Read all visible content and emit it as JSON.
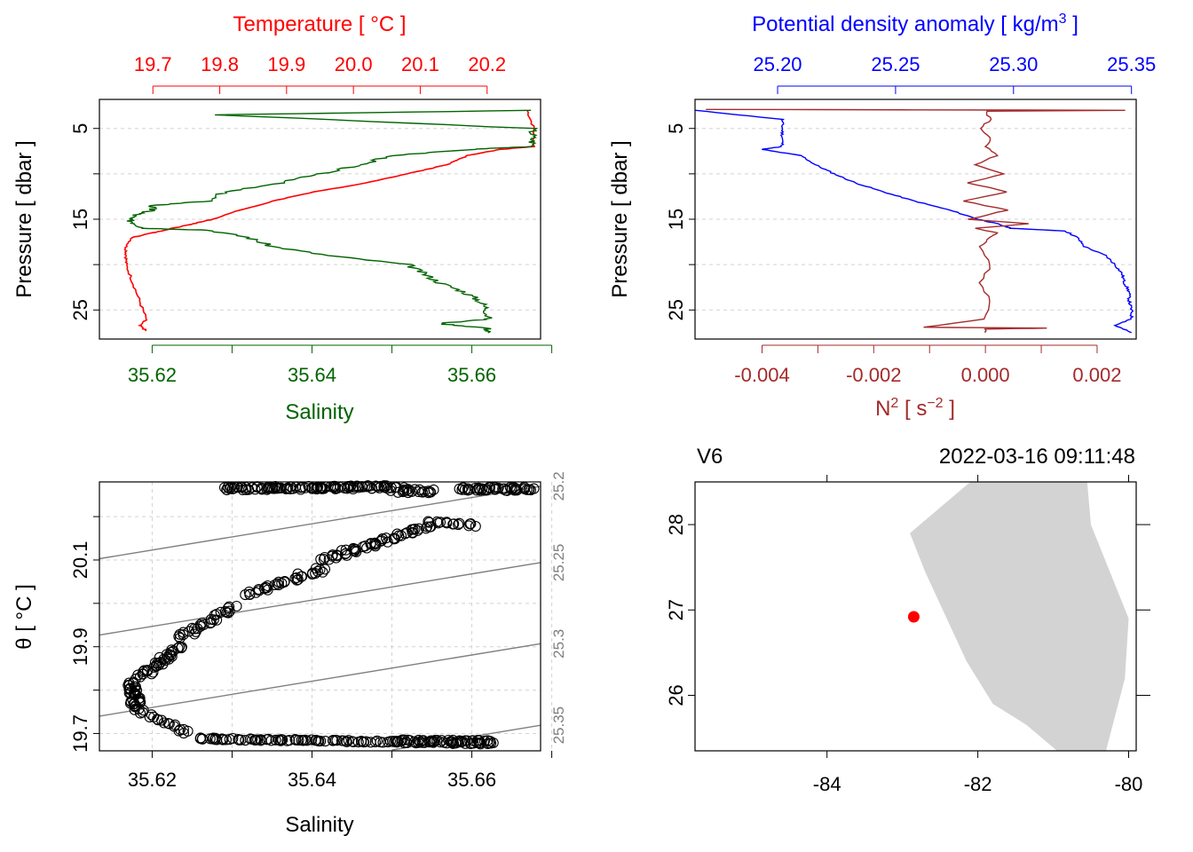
{
  "colors": {
    "temperature": "#ff0000",
    "salinity": "#006400",
    "density": "#0000ff",
    "n2": "#a52a2a",
    "isopycnal": "#7f7f7f",
    "land": "#d3d3d3",
    "station": "#ff0000",
    "grid": "#d3d3d3",
    "frame": "#000000"
  },
  "chart_data": [
    {
      "id": "ts_profile",
      "type": "line",
      "title": "",
      "top_axis": {
        "label": "Temperature [ °C ]",
        "range": [
          19.62,
          20.28
        ],
        "ticks": [
          "19.7",
          "19.8",
          "19.9",
          "20.0",
          "20.1",
          "20.2"
        ]
      },
      "bottom_axis": {
        "label": "Salinity",
        "range": [
          35.6134,
          35.6686
        ],
        "ticks": [
          "35.62",
          "35.64",
          "35.66"
        ]
      },
      "y_axis": {
        "label": "Pressure [ dbar ]",
        "range": [
          28.2,
          1.8
        ],
        "ticks": [
          "5",
          "15",
          "25"
        ]
      },
      "series": [
        {
          "name": "Temperature",
          "pressure": [
            3,
            5,
            7,
            7.3,
            8,
            9,
            10,
            11,
            12,
            13,
            14,
            15,
            15.5,
            16,
            16.5,
            17,
            18,
            19,
            20,
            22,
            24,
            26,
            26.7,
            27.3
          ],
          "values": [
            20.26,
            20.27,
            20.27,
            20.22,
            20.17,
            20.14,
            20.08,
            20.02,
            19.94,
            19.88,
            19.83,
            19.79,
            19.76,
            19.73,
            19.7,
            19.67,
            19.66,
            19.66,
            19.66,
            19.67,
            19.68,
            19.69,
            19.68,
            19.69
          ]
        },
        {
          "name": "Salinity",
          "pressure": [
            3,
            3.5,
            5,
            6,
            7,
            7.3,
            8,
            9,
            10,
            11,
            12,
            13,
            13.5,
            14,
            14.5,
            15,
            15.5,
            16,
            16.2,
            17,
            18,
            19,
            20,
            21,
            22,
            23,
            24,
            25,
            26,
            26.5,
            27,
            27.5
          ],
          "values": [
            35.6676,
            35.628,
            35.6676,
            35.6676,
            35.6676,
            35.66,
            35.65,
            35.646,
            35.641,
            35.636,
            35.629,
            35.627,
            35.62,
            35.62,
            35.618,
            35.617,
            35.618,
            35.619,
            35.627,
            35.632,
            35.635,
            35.642,
            35.652,
            35.654,
            35.656,
            35.659,
            35.661,
            35.662,
            35.662,
            35.656,
            35.662,
            35.662
          ]
        }
      ]
    },
    {
      "id": "density_profile",
      "type": "line",
      "top_axis": {
        "label_main": "Potential density anomaly [ kg/m",
        "label_sup": "3",
        "label_end": " ]",
        "range": [
          25.165,
          25.352
        ],
        "ticks": [
          "25.20",
          "25.25",
          "25.30",
          "25.35"
        ]
      },
      "bottom_axis": {
        "label_main": "N",
        "label_sup": "2",
        "label_mid": " [ s",
        "label_sup2": "−2",
        "label_end": " ]",
        "range": [
          -0.0052,
          0.0027
        ],
        "ticks": [
          "-0.004",
          "-0.002",
          "0.000",
          "0.002"
        ]
      },
      "y_axis": {
        "label": "Pressure [ dbar ]",
        "range": [
          28.2,
          1.8
        ],
        "ticks": [
          "5",
          "15",
          "25"
        ]
      },
      "series": [
        {
          "name": "Potential density anomaly",
          "pressure": [
            3,
            4,
            5,
            6,
            7,
            7.3,
            8,
            9,
            10,
            11,
            12,
            13,
            14,
            15,
            15.5,
            16,
            16.3,
            17,
            18,
            19,
            20,
            21,
            22,
            23,
            24,
            25,
            26,
            26.7,
            27.5
          ],
          "values": [
            25.165,
            25.202,
            25.202,
            25.202,
            25.202,
            25.193,
            25.21,
            25.216,
            25.224,
            25.233,
            25.245,
            25.258,
            25.273,
            25.285,
            25.293,
            25.299,
            25.322,
            25.327,
            25.33,
            25.339,
            25.343,
            25.346,
            25.347,
            25.349,
            25.349,
            25.35,
            25.35,
            25.343,
            25.35
          ]
        },
        {
          "name": "N2",
          "pressure": [
            2.9,
            3,
            3.1,
            4,
            5,
            6,
            7,
            8,
            9,
            10,
            11,
            12,
            13,
            14,
            15,
            15.5,
            16,
            16.5,
            17,
            18,
            20,
            22,
            24,
            26,
            26.9,
            27,
            27.1,
            27.5
          ],
          "values": [
            -0.005,
            0.0025,
            0.0,
            0.0001,
            -0.0001,
            0.0001,
            0.0,
            0.0002,
            -0.0002,
            0.0003,
            -0.0003,
            0.0004,
            -0.0004,
            0.0004,
            -0.0003,
            0.0008,
            -0.0002,
            0.0002,
            0.0001,
            -0.0001,
            0.0001,
            -0.0001,
            0.0001,
            0.0,
            -0.0011,
            0.0011,
            0.0,
            0.0
          ]
        }
      ]
    },
    {
      "id": "ts_diagram",
      "type": "scatter",
      "x_axis": {
        "label": "Salinity",
        "range": [
          35.6134,
          35.6686
        ],
        "ticks": [
          "35.62",
          "35.64",
          "35.66"
        ]
      },
      "y_axis": {
        "label": "θ [ °C ]",
        "range": [
          19.66,
          20.28
        ],
        "ticks": [
          "19.7",
          "19.9",
          "20.1"
        ]
      },
      "isopycnal_labels": [
        "25.2",
        "25.25",
        "25.3",
        "25.35"
      ],
      "isopycnals": [
        {
          "label": "25.2",
          "points": [
            [
              35.6134,
              20.103
            ],
            [
              35.6686,
              20.27
            ]
          ]
        },
        {
          "label": "25.25",
          "points": [
            [
              35.6134,
              19.927
            ],
            [
              35.6686,
              20.094
            ]
          ]
        },
        {
          "label": "25.3",
          "points": [
            [
              35.6134,
              19.74
            ],
            [
              35.6686,
              19.907
            ]
          ]
        },
        {
          "label": "25.35",
          "points": [
            [
              35.65,
              19.662
            ],
            [
              35.6686,
              19.719
            ]
          ]
        }
      ],
      "segments": [
        {
          "from": [
            35.6285,
            20.265
          ],
          "to": [
            35.6505,
            20.268
          ],
          "n": 110,
          "jitter_x": 0.0025,
          "jitter_y": 0.008
        },
        {
          "from": [
            35.6505,
            20.26
          ],
          "to": [
            35.6555,
            20.258
          ],
          "n": 20,
          "jitter_x": 0.0015,
          "jitter_y": 0.008
        },
        {
          "from": [
            35.6585,
            20.264
          ],
          "to": [
            35.6675,
            20.264
          ],
          "n": 45,
          "jitter_x": 0.001,
          "jitter_y": 0.008
        },
        {
          "from": [
            35.6605,
            20.18
          ],
          "to": [
            35.6545,
            20.188
          ],
          "n": 15,
          "jitter_x": 0.001,
          "jitter_y": 0.006
        },
        {
          "from": [
            35.6545,
            20.178
          ],
          "to": [
            35.6415,
            20.1
          ],
          "n": 55,
          "jitter_x": 0.0015,
          "jitter_y": 0.01
        },
        {
          "from": [
            35.6415,
            20.08
          ],
          "to": [
            35.6315,
            20.02
          ],
          "n": 35,
          "jitter_x": 0.0015,
          "jitter_y": 0.01
        },
        {
          "from": [
            35.6305,
            19.99
          ],
          "to": [
            35.6235,
            19.92
          ],
          "n": 30,
          "jitter_x": 0.0015,
          "jitter_y": 0.01
        },
        {
          "from": [
            35.6235,
            19.9
          ],
          "to": [
            35.6185,
            19.83
          ],
          "n": 35,
          "jitter_x": 0.0012,
          "jitter_y": 0.012
        },
        {
          "from": [
            35.6175,
            19.82
          ],
          "to": [
            35.618,
            19.76
          ],
          "n": 35,
          "jitter_x": 0.0012,
          "jitter_y": 0.012
        },
        {
          "from": [
            35.618,
            19.755
          ],
          "to": [
            35.6245,
            19.7
          ],
          "n": 20,
          "jitter_x": 0.0012,
          "jitter_y": 0.006
        },
        {
          "from": [
            35.6255,
            19.688
          ],
          "to": [
            35.6625,
            19.677
          ],
          "n": 120,
          "jitter_x": 0.0012,
          "jitter_y": 0.004
        },
        {
          "from": [
            35.6505,
            19.684
          ],
          "to": [
            35.6625,
            19.683
          ],
          "n": 30,
          "jitter_x": 0.001,
          "jitter_y": 0.003
        }
      ]
    },
    {
      "id": "station_map",
      "type": "map",
      "station_label": "V6",
      "datetime": "2022-03-16 09:11:48",
      "x_axis": {
        "label": "",
        "range": [
          -85.75,
          -79.9
        ],
        "ticks": [
          "-84",
          "-82",
          "-80"
        ]
      },
      "y_axis": {
        "label": "",
        "range": [
          25.35,
          28.5
        ],
        "ticks": [
          "26",
          "27",
          "28"
        ]
      },
      "station": {
        "lon": -82.85,
        "lat": 26.92
      },
      "coastline": [
        [
          -82.1,
          28.5
        ],
        [
          -80.55,
          28.5
        ],
        [
          -80.5,
          28.0
        ],
        [
          -80.0,
          26.9
        ],
        [
          -80.05,
          26.2
        ],
        [
          -80.3,
          25.35
        ],
        [
          -80.95,
          25.35
        ],
        [
          -81.35,
          25.65
        ],
        [
          -81.8,
          25.9
        ],
        [
          -82.15,
          26.4
        ],
        [
          -82.7,
          27.45
        ],
        [
          -82.9,
          27.9
        ]
      ]
    }
  ]
}
